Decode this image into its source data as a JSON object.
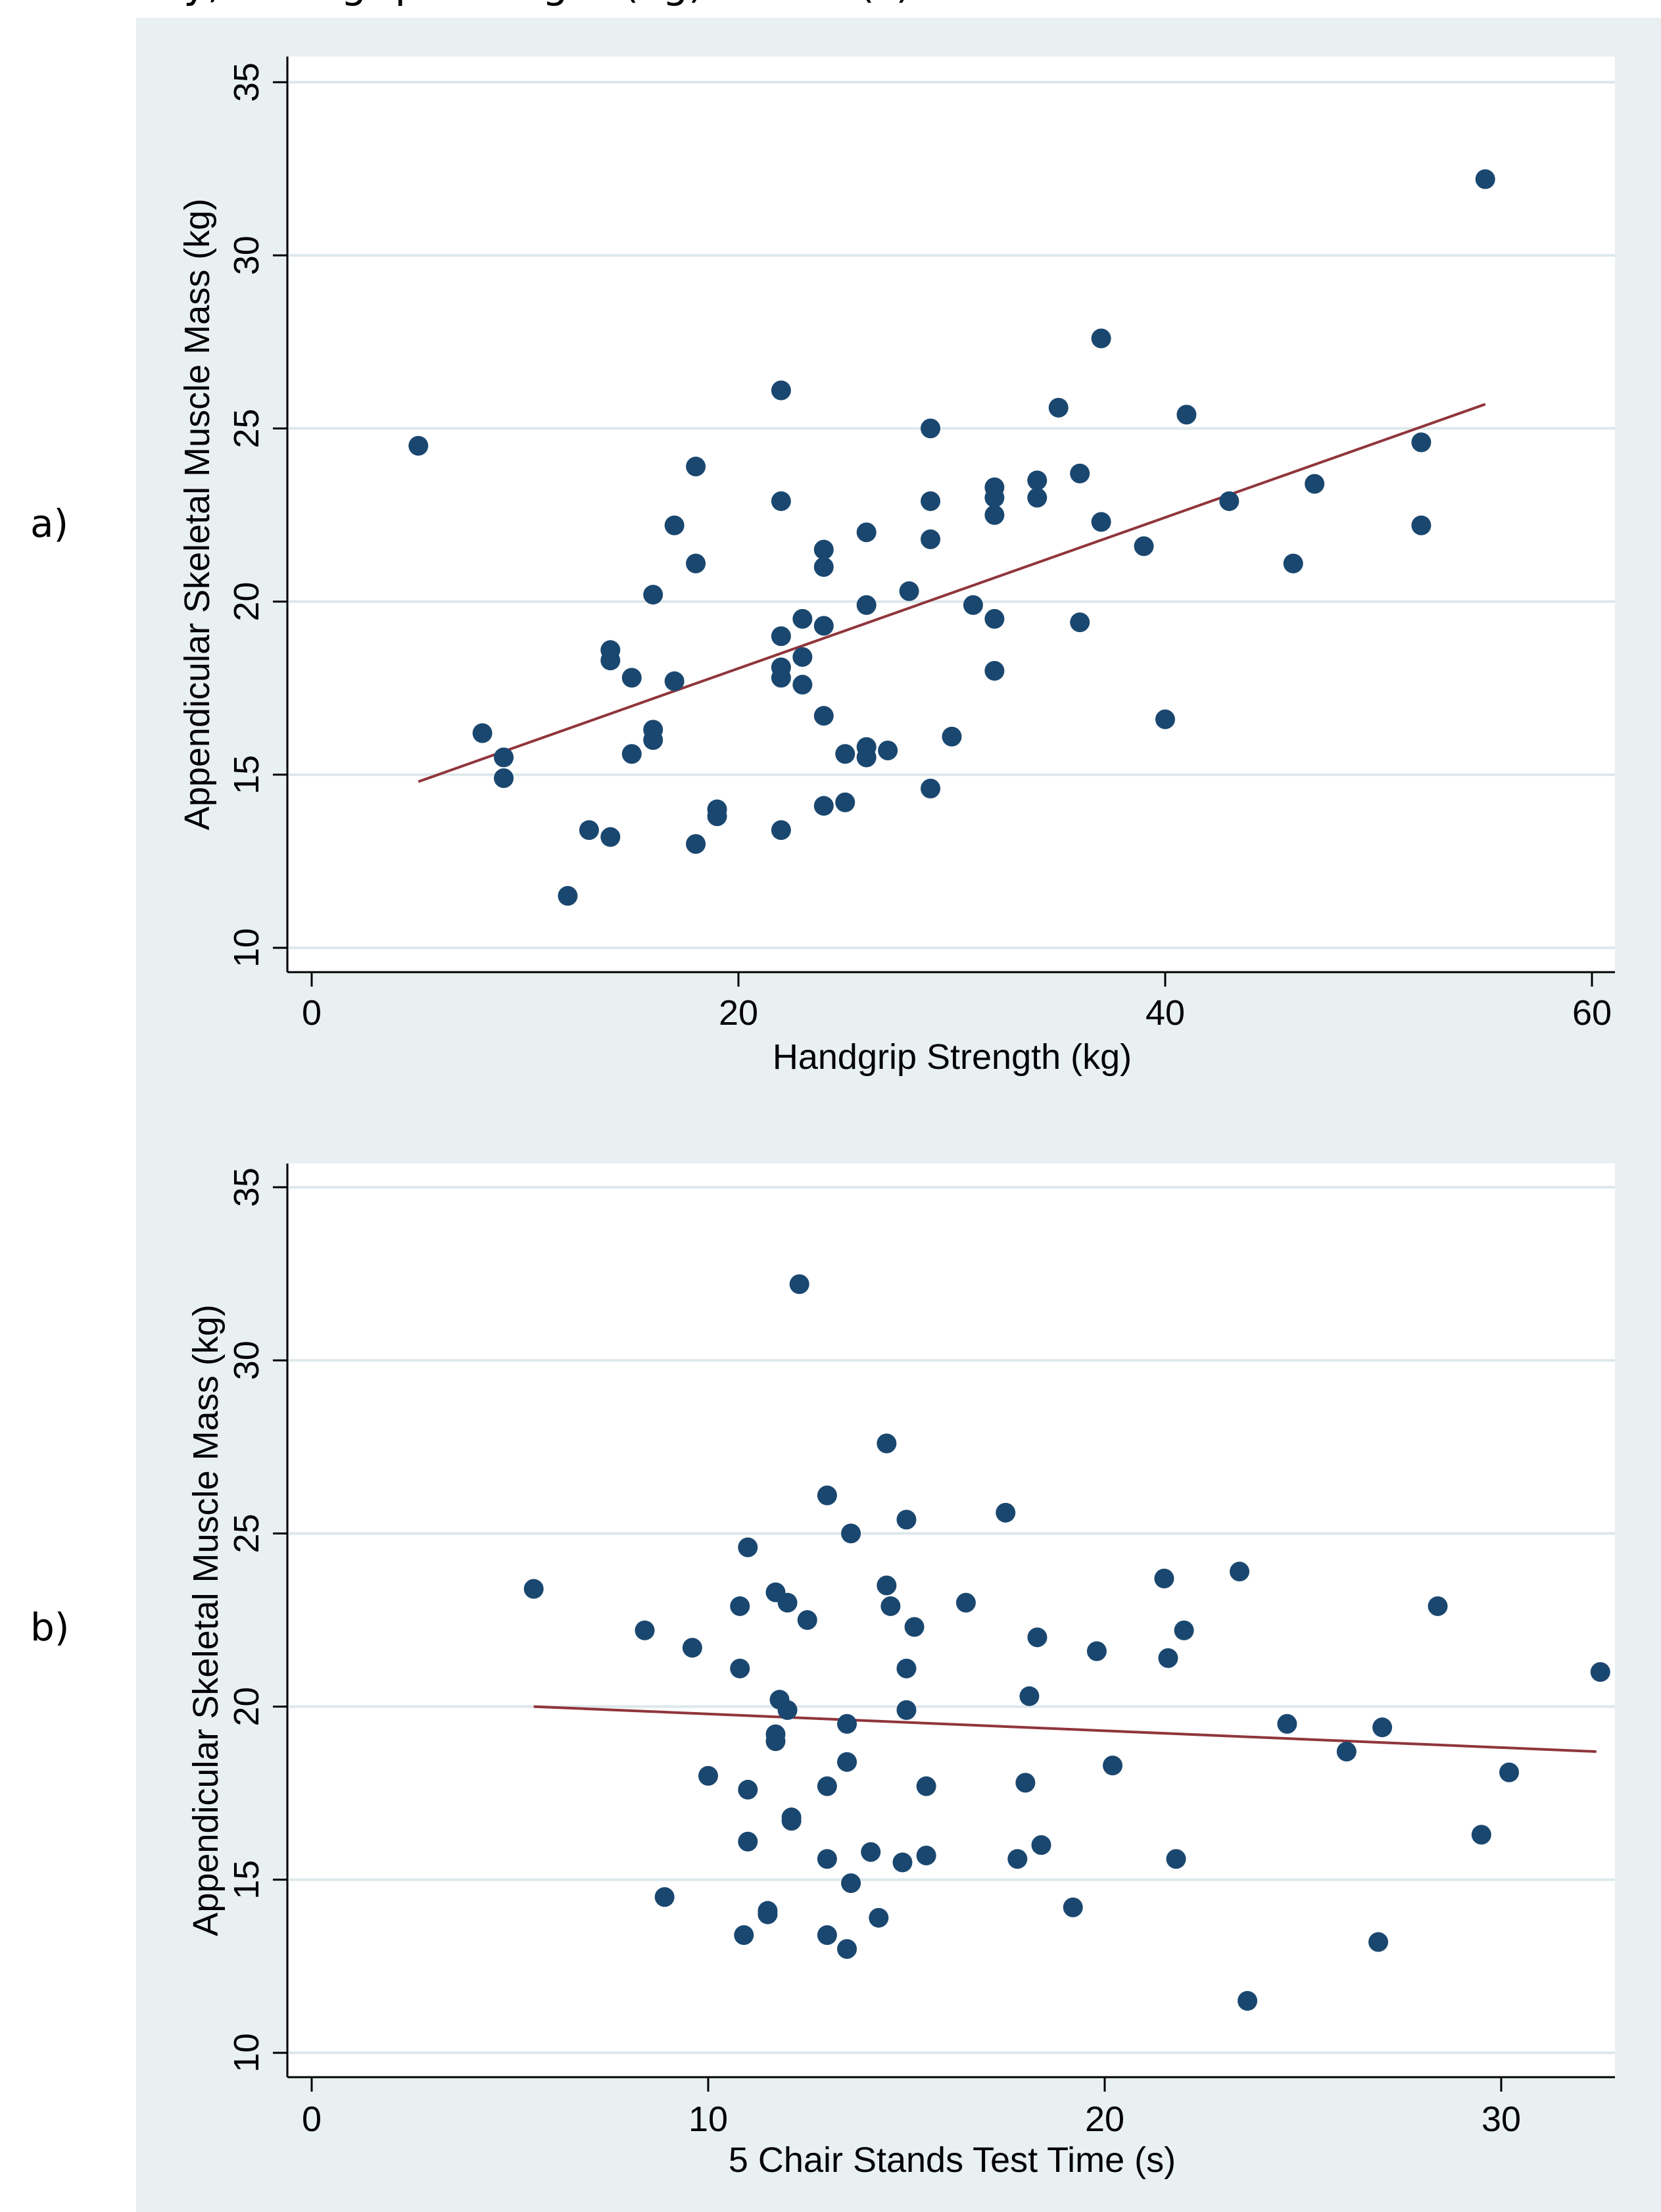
{
  "caption_fragment": "... y, Handgrip Strength (kg) and ... (s)",
  "panels": [
    {
      "label": "a)"
    },
    {
      "label": "b)"
    }
  ],
  "colors": {
    "figure_background": "#e9f0f2",
    "plot_background": "#ffffff",
    "gridline": "#dde8eb",
    "marker": "#1a476f",
    "fit_line": "#90353b"
  },
  "chart_data": [
    {
      "type": "scatter",
      "panel": "a)",
      "title": "",
      "xlabel": "Handgrip Strength (kg)",
      "ylabel": "Appendicular Skeletal Muscle Mass (kg)",
      "xlim": [
        0,
        60
      ],
      "ylim": [
        10,
        35
      ],
      "xticks": [
        "0",
        "20",
        "40",
        "60"
      ],
      "yticks": [
        "10",
        "15",
        "20",
        "25",
        "30",
        "35"
      ],
      "grid": "horizontal",
      "legend": "none",
      "points": [
        [
          5,
          24.5
        ],
        [
          8,
          16.2
        ],
        [
          9,
          15.5
        ],
        [
          9,
          14.9
        ],
        [
          12,
          11.5
        ],
        [
          13,
          13.4
        ],
        [
          14,
          13.2
        ],
        [
          14,
          18.6
        ],
        [
          14,
          18.3
        ],
        [
          15,
          17.8
        ],
        [
          15,
          15.6
        ],
        [
          16,
          20.2
        ],
        [
          16,
          16.3
        ],
        [
          16,
          16.0
        ],
        [
          17,
          22.2
        ],
        [
          17,
          17.7
        ],
        [
          18,
          23.9
        ],
        [
          18,
          21.1
        ],
        [
          18,
          13.0
        ],
        [
          19,
          14.0
        ],
        [
          19,
          13.8
        ],
        [
          22,
          26.1
        ],
        [
          22,
          22.9
        ],
        [
          22,
          19.0
        ],
        [
          22,
          18.1
        ],
        [
          22,
          17.8
        ],
        [
          22,
          13.4
        ],
        [
          23,
          19.5
        ],
        [
          23,
          18.4
        ],
        [
          23,
          17.6
        ],
        [
          24,
          21.5
        ],
        [
          24,
          21.0
        ],
        [
          24,
          19.3
        ],
        [
          24,
          16.7
        ],
        [
          24,
          14.1
        ],
        [
          25,
          15.6
        ],
        [
          25,
          14.2
        ],
        [
          26,
          22.0
        ],
        [
          26,
          19.9
        ],
        [
          26,
          15.8
        ],
        [
          26,
          15.5
        ],
        [
          27,
          15.7
        ],
        [
          28,
          20.3
        ],
        [
          29,
          25.0
        ],
        [
          29,
          22.9
        ],
        [
          29,
          21.8
        ],
        [
          29,
          14.6
        ],
        [
          30,
          16.1
        ],
        [
          31,
          19.9
        ],
        [
          32,
          23.3
        ],
        [
          32,
          23.0
        ],
        [
          32,
          22.5
        ],
        [
          32,
          19.5
        ],
        [
          32,
          18.0
        ],
        [
          34,
          23.5
        ],
        [
          34,
          23.0
        ],
        [
          35,
          25.6
        ],
        [
          36,
          23.7
        ],
        [
          36,
          19.4
        ],
        [
          37,
          27.6
        ],
        [
          37,
          22.3
        ],
        [
          39,
          21.6
        ],
        [
          40,
          16.6
        ],
        [
          41,
          25.4
        ],
        [
          43,
          22.9
        ],
        [
          46,
          21.1
        ],
        [
          47,
          23.4
        ],
        [
          52,
          24.6
        ],
        [
          52,
          22.2
        ],
        [
          55,
          32.2
        ]
      ],
      "fit_line": {
        "x": [
          5,
          55
        ],
        "y": [
          14.8,
          25.7
        ]
      }
    },
    {
      "type": "scatter",
      "panel": "b)",
      "title": "",
      "xlabel": "5 Chair Stands Test Time (s)",
      "ylabel": "Appendicular Skeletal Muscle Mass (kg)",
      "xlim": [
        -0.6,
        33
      ],
      "ylim": [
        10,
        35
      ],
      "xticks": [
        "0",
        "10",
        "20",
        "30"
      ],
      "yticks": [
        "10",
        "15",
        "20",
        "25",
        "30",
        "35"
      ],
      "grid": "horizontal",
      "legend": "none",
      "points": [
        [
          5.6,
          23.4
        ],
        [
          8.4,
          22.2
        ],
        [
          8.9,
          14.5
        ],
        [
          9.6,
          21.7
        ],
        [
          10.0,
          18.0
        ],
        [
          10.8,
          22.9
        ],
        [
          10.8,
          21.1
        ],
        [
          10.9,
          13.4
        ],
        [
          11.0,
          24.6
        ],
        [
          11.0,
          17.6
        ],
        [
          11.0,
          16.1
        ],
        [
          11.5,
          14.1
        ],
        [
          11.5,
          14.0
        ],
        [
          11.7,
          23.3
        ],
        [
          11.7,
          19.2
        ],
        [
          11.7,
          19.0
        ],
        [
          11.8,
          20.2
        ],
        [
          12.0,
          23.0
        ],
        [
          12.0,
          19.9
        ],
        [
          12.1,
          16.8
        ],
        [
          12.1,
          16.7
        ],
        [
          12.3,
          32.2
        ],
        [
          12.5,
          22.5
        ],
        [
          13.0,
          26.1
        ],
        [
          13.0,
          17.7
        ],
        [
          13.0,
          15.6
        ],
        [
          13.0,
          13.4
        ],
        [
          13.5,
          19.5
        ],
        [
          13.5,
          18.4
        ],
        [
          13.5,
          13.0
        ],
        [
          13.6,
          25.0
        ],
        [
          13.6,
          14.9
        ],
        [
          14.1,
          15.8
        ],
        [
          14.3,
          13.9
        ],
        [
          14.5,
          27.6
        ],
        [
          14.5,
          23.5
        ],
        [
          14.6,
          22.9
        ],
        [
          14.9,
          15.5
        ],
        [
          15.0,
          25.4
        ],
        [
          15.0,
          21.1
        ],
        [
          15.0,
          19.9
        ],
        [
          15.2,
          22.3
        ],
        [
          15.5,
          17.7
        ],
        [
          15.5,
          15.7
        ],
        [
          16.5,
          23.0
        ],
        [
          17.5,
          25.6
        ],
        [
          17.8,
          15.6
        ],
        [
          18.0,
          17.8
        ],
        [
          18.1,
          20.3
        ],
        [
          18.3,
          22.0
        ],
        [
          18.4,
          16.0
        ],
        [
          19.2,
          14.2
        ],
        [
          19.8,
          21.6
        ],
        [
          20.2,
          18.3
        ],
        [
          21.5,
          23.7
        ],
        [
          21.6,
          21.4
        ],
        [
          21.8,
          15.6
        ],
        [
          22.0,
          22.2
        ],
        [
          23.4,
          23.9
        ],
        [
          23.6,
          11.5
        ],
        [
          24.6,
          19.5
        ],
        [
          26.1,
          18.7
        ],
        [
          26.9,
          13.2
        ],
        [
          27.0,
          19.4
        ],
        [
          28.4,
          22.9
        ],
        [
          29.5,
          16.3
        ],
        [
          30.2,
          18.1
        ],
        [
          32.5,
          21.0
        ]
      ],
      "fit_line": {
        "x": [
          5.6,
          32.4
        ],
        "y": [
          20.0,
          18.7
        ]
      }
    }
  ]
}
